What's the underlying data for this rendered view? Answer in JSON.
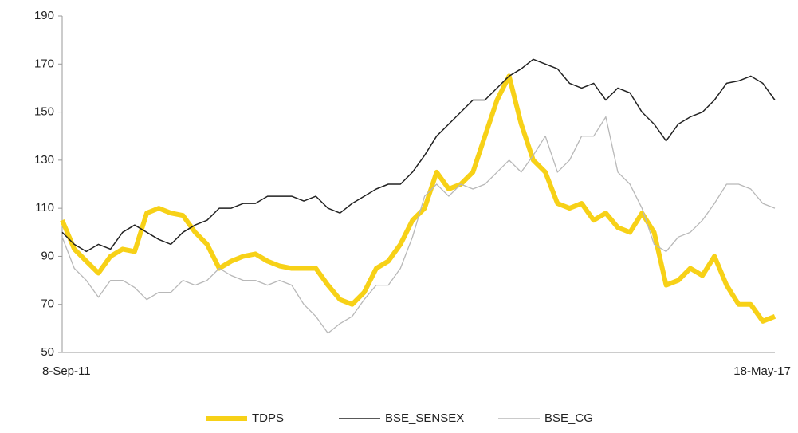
{
  "chart_data": {
    "type": "line",
    "categories": [
      "8-Sep-11",
      null,
      null,
      null,
      null,
      null,
      null,
      null,
      null,
      null,
      null,
      null,
      null,
      null,
      null,
      null,
      null,
      null,
      null,
      null,
      null,
      null,
      null,
      null,
      null,
      null,
      null,
      null,
      null,
      null,
      null,
      null,
      null,
      null,
      null,
      null,
      null,
      null,
      null,
      null,
      null,
      null,
      null,
      null,
      null,
      null,
      null,
      null,
      null,
      null,
      null,
      null,
      null,
      null,
      null,
      null,
      null,
      null,
      null,
      "18-May-17"
    ],
    "series": [
      {
        "name": "TDPS",
        "color": "#f7d117",
        "values": [
          105,
          93,
          88,
          83,
          90,
          93,
          92,
          108,
          110,
          108,
          107,
          100,
          95,
          85,
          88,
          90,
          91,
          88,
          86,
          85,
          85,
          85,
          78,
          72,
          70,
          75,
          85,
          88,
          95,
          105,
          110,
          125,
          118,
          120,
          125,
          140,
          155,
          165,
          145,
          130,
          125,
          112,
          110,
          112,
          105,
          108,
          102,
          100,
          108,
          100,
          78,
          80,
          85,
          82,
          90,
          78,
          70,
          70,
          63,
          65
        ]
      },
      {
        "name": "BSE_SENSEX",
        "color": "#222222",
        "values": [
          100,
          95,
          92,
          95,
          93,
          100,
          103,
          100,
          97,
          95,
          100,
          103,
          105,
          110,
          110,
          112,
          112,
          115,
          115,
          115,
          113,
          115,
          110,
          108,
          112,
          115,
          118,
          120,
          120,
          125,
          132,
          140,
          145,
          150,
          155,
          155,
          160,
          165,
          168,
          172,
          170,
          168,
          162,
          160,
          162,
          155,
          160,
          158,
          150,
          145,
          138,
          145,
          148,
          150,
          155,
          162,
          163,
          165,
          162,
          155
        ]
      },
      {
        "name": "BSE_CG",
        "color": "#b8b8b8",
        "values": [
          98,
          85,
          80,
          73,
          80,
          80,
          77,
          72,
          75,
          75,
          80,
          78,
          80,
          85,
          82,
          80,
          80,
          78,
          80,
          78,
          70,
          65,
          58,
          62,
          65,
          72,
          78,
          78,
          85,
          98,
          115,
          120,
          115,
          120,
          118,
          120,
          125,
          130,
          125,
          132,
          140,
          125,
          130,
          140,
          140,
          148,
          125,
          120,
          110,
          95,
          92,
          98,
          100,
          105,
          112,
          120,
          120,
          118,
          112,
          110
        ]
      }
    ],
    "ylim": [
      50,
      190
    ],
    "yticks": [
      50,
      70,
      90,
      110,
      130,
      150,
      170,
      190
    ],
    "legend": "bottom"
  }
}
